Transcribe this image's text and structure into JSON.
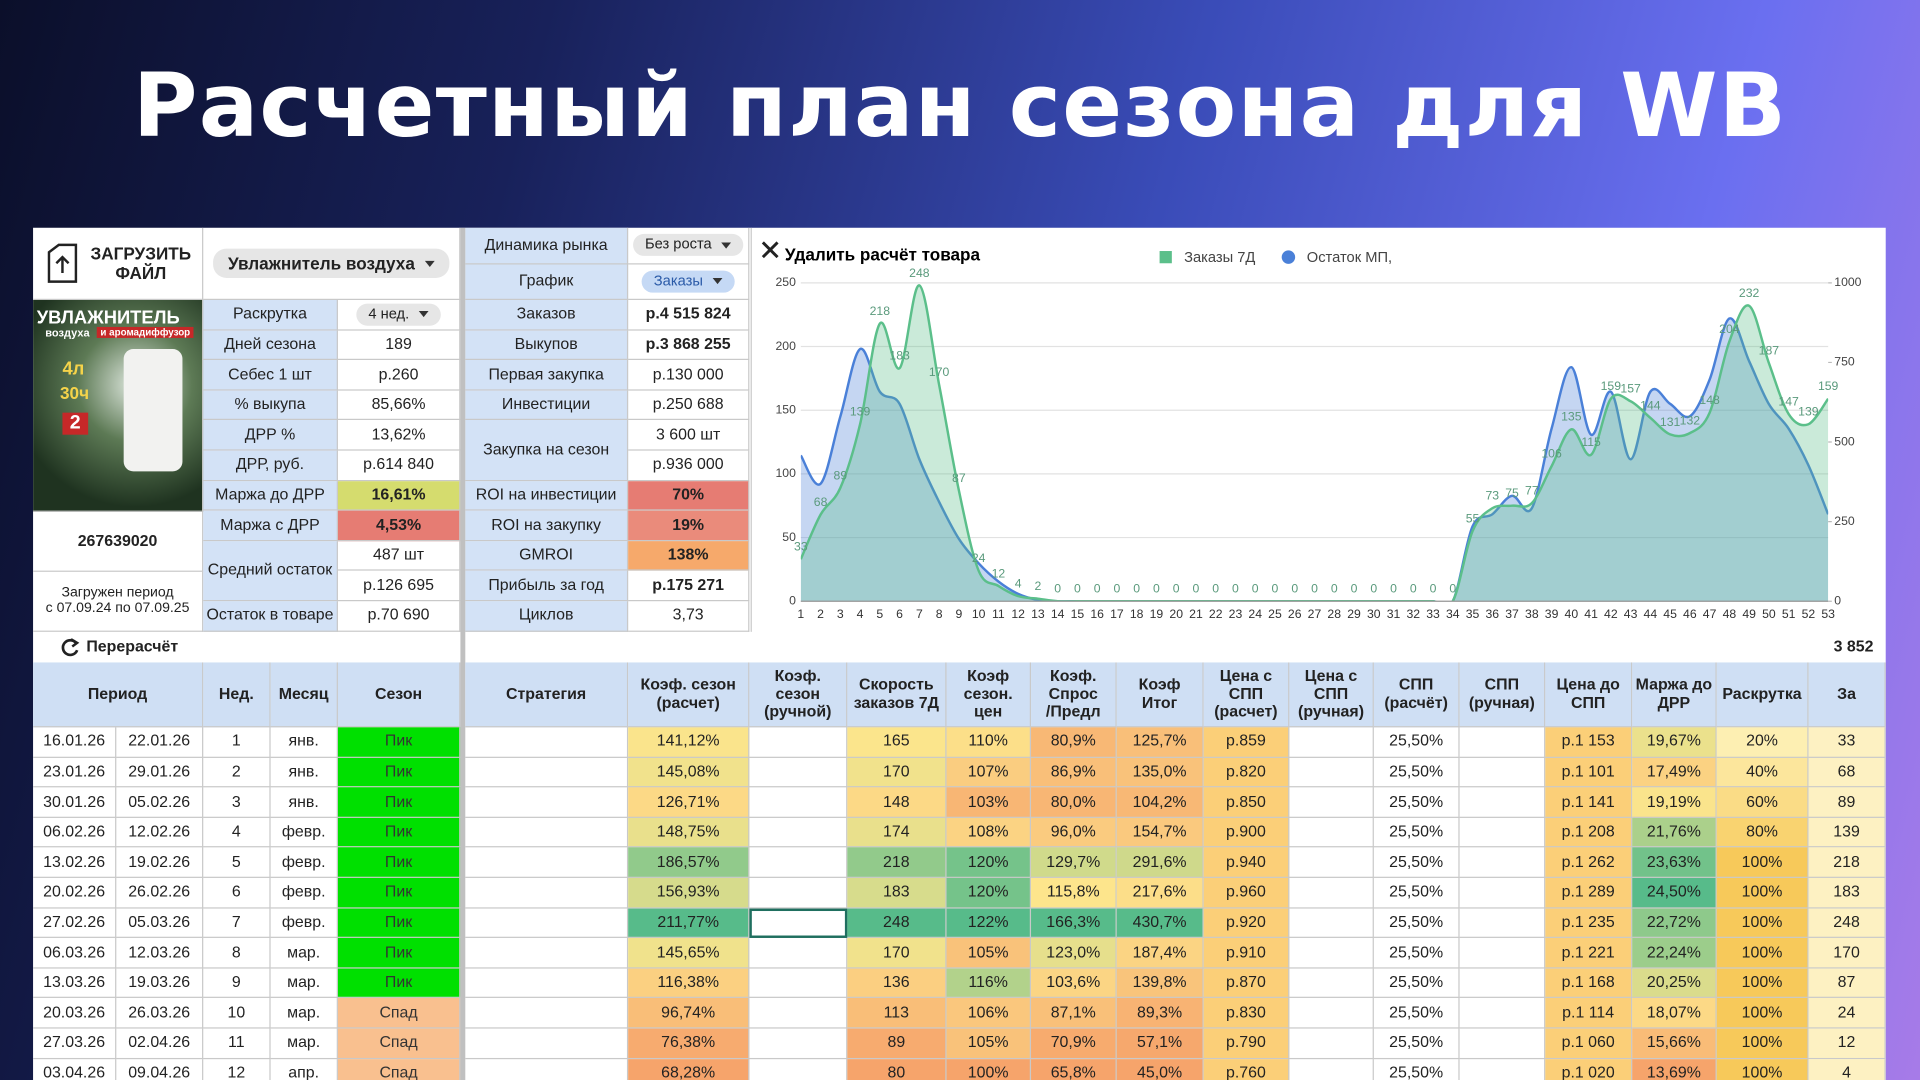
{
  "title": "Расчетный план сезона для WB",
  "upload": "ЗАГРУЗИТЬ\nФАЙЛ",
  "product": {
    "name": "Увлажнитель воздуха",
    "image_text": [
      "УВЛАЖНИТЕЛЬ",
      "воздуха",
      "и аромадиффузор",
      "4л",
      "30ч",
      "2"
    ],
    "sku": "267639020",
    "period": "Загружен период\nс 07.09.24  по 07.09.25"
  },
  "market": [
    {
      "label": "Динамика рынка",
      "value": "Без роста"
    },
    {
      "label": "График",
      "value": "Заказы"
    }
  ],
  "params_left": [
    {
      "label": "Раскрутка",
      "values": [
        "4 нед."
      ],
      "dropdown": true
    },
    {
      "label": "Дней сезона",
      "values": [
        "189"
      ]
    },
    {
      "label": "Себес 1 шт",
      "values": [
        "р.260"
      ]
    },
    {
      "label": "% выкупа",
      "values": [
        "85,66%"
      ]
    },
    {
      "label": "ДРР %",
      "values": [
        "13,62%"
      ]
    },
    {
      "label": "ДРР, руб.",
      "values": [
        "р.614 840"
      ]
    },
    {
      "label": "Маржа до ДРР",
      "values": [
        "16,61%"
      ],
      "color": "#d5dc6e",
      "bold": true
    },
    {
      "label": "Маржа с ДРР",
      "values": [
        "4,53%"
      ],
      "color": "#e67c73",
      "bold": true
    },
    {
      "label": "Средний остаток",
      "values": [
        "487 шт",
        "р.126 695"
      ]
    },
    {
      "label": "Остаток в товаре",
      "values": [
        "р.70 690"
      ]
    }
  ],
  "params_right": [
    {
      "label": "Заказов",
      "values": [
        "р.4 515 824"
      ],
      "bold": true
    },
    {
      "label": "Выкупов",
      "values": [
        "р.3 868 255"
      ],
      "bold": true
    },
    {
      "label": "Первая закупка",
      "values": [
        "р.130 000"
      ]
    },
    {
      "label": "Инвестиции",
      "values": [
        "р.250 688"
      ]
    },
    {
      "label": "Закупка на сезон",
      "values": [
        "3 600 шт",
        "р.936 000"
      ]
    },
    {
      "label": "ROI на инвестиции",
      "values": [
        "70%"
      ],
      "color": "#e67c73",
      "bold": true
    },
    {
      "label": "ROI на закупку",
      "values": [
        "19%"
      ],
      "color": "#ea8b7b",
      "bold": true
    },
    {
      "label": "GMROI",
      "values": [
        "138%"
      ],
      "color": "#f6a96b",
      "bold": true
    },
    {
      "label": "Прибыль за год",
      "values": [
        "р.175 271"
      ],
      "bold": true
    },
    {
      "label": "Циклов",
      "values": [
        "3,73"
      ]
    }
  ],
  "recalc": "Перерасчёт",
  "recalc_total": "3 852",
  "table": {
    "header": [
      "Период",
      "Нед.",
      "Месяц",
      "Сезон",
      "Стратегия",
      "Коэф. сезон\n(расчет)",
      "Коэф.\nсезон\n(ручной)",
      "Скорость\nзаказов 7Д",
      "Коэф\nсезон.\nцен",
      "Коэф.\nСпрос\n/Предл",
      "Коэф\nИтог",
      "Цена с\nСПП\n(расчет)",
      "Цена с\nСПП\n(ручная)",
      "СПП\n(расчёт)",
      "СПП\n(ручная)",
      "Цена до\nСПП",
      "Маржа до\nДРР",
      "Раскрутка",
      "За"
    ],
    "rows": [
      [
        "16.01.26",
        "22.01.26",
        "1",
        "янв.",
        "Пик",
        null,
        "141,12%",
        null,
        "165",
        "110%",
        "80,9%",
        "125,7%",
        "р.859",
        null,
        "25,50%",
        null,
        "р.1 153",
        "19,67%",
        "20%",
        "33"
      ],
      [
        "23.01.26",
        "29.01.26",
        "2",
        "янв.",
        "Пик",
        null,
        "145,08%",
        null,
        "170",
        "107%",
        "86,9%",
        "135,0%",
        "р.820",
        null,
        "25,50%",
        null,
        "р.1 101",
        "17,49%",
        "40%",
        "68"
      ],
      [
        "30.01.26",
        "05.02.26",
        "3",
        "янв.",
        "Пик",
        null,
        "126,71%",
        null,
        "148",
        "103%",
        "80,0%",
        "104,2%",
        "р.850",
        null,
        "25,50%",
        null,
        "р.1 141",
        "19,19%",
        "60%",
        "89"
      ],
      [
        "06.02.26",
        "12.02.26",
        "4",
        "февр.",
        "Пик",
        null,
        "148,75%",
        null,
        "174",
        "108%",
        "96,0%",
        "154,7%",
        "р.900",
        null,
        "25,50%",
        null,
        "р.1 208",
        "21,76%",
        "80%",
        "139"
      ],
      [
        "13.02.26",
        "19.02.26",
        "5",
        "февр.",
        "Пик",
        null,
        "186,57%",
        null,
        "218",
        "120%",
        "129,7%",
        "291,6%",
        "р.940",
        null,
        "25,50%",
        null,
        "р.1 262",
        "23,63%",
        "100%",
        "218"
      ],
      [
        "20.02.26",
        "26.02.26",
        "6",
        "февр.",
        "Пик",
        null,
        "156,93%",
        null,
        "183",
        "120%",
        "115,8%",
        "217,6%",
        "р.960",
        null,
        "25,50%",
        null,
        "р.1 289",
        "24,50%",
        "100%",
        "183"
      ],
      [
        "27.02.26",
        "05.03.26",
        "7",
        "февр.",
        "Пик",
        null,
        "211,77%",
        null,
        "248",
        "122%",
        "166,3%",
        "430,7%",
        "р.920",
        null,
        "25,50%",
        null,
        "р.1 235",
        "22,72%",
        "100%",
        "248"
      ],
      [
        "06.03.26",
        "12.03.26",
        "8",
        "мар.",
        "Пик",
        null,
        "145,65%",
        null,
        "170",
        "105%",
        "123,0%",
        "187,4%",
        "р.910",
        null,
        "25,50%",
        null,
        "р.1 221",
        "22,24%",
        "100%",
        "170"
      ],
      [
        "13.03.26",
        "19.03.26",
        "9",
        "мар.",
        "Пик",
        null,
        "116,38%",
        null,
        "136",
        "116%",
        "103,6%",
        "139,8%",
        "р.870",
        null,
        "25,50%",
        null,
        "р.1 168",
        "20,25%",
        "100%",
        "87"
      ],
      [
        "20.03.26",
        "26.03.26",
        "10",
        "мар.",
        "Спад",
        null,
        "96,74%",
        null,
        "113",
        "106%",
        "87,1%",
        "89,3%",
        "р.830",
        null,
        "25,50%",
        null,
        "р.1 114",
        "18,07%",
        "100%",
        "24"
      ],
      [
        "27.03.26",
        "02.04.26",
        "11",
        "мар.",
        "Спад",
        null,
        "76,38%",
        null,
        "89",
        "105%",
        "70,9%",
        "57,1%",
        "р.790",
        null,
        "25,50%",
        null,
        "р.1 060",
        "15,66%",
        "100%",
        "12"
      ],
      [
        "03.04.26",
        "09.04.26",
        "12",
        "апр.",
        "Спад",
        null,
        "68,28%",
        null,
        "80",
        "100%",
        "65,8%",
        "45,0%",
        "р.760",
        null,
        "25,50%",
        null,
        "р.1 020",
        "13,69%",
        "100%",
        "4"
      ]
    ]
  },
  "chart_data": {
    "type": "line",
    "button": "Удалить расчёт товара",
    "x": [
      1,
      2,
      3,
      4,
      5,
      6,
      7,
      8,
      9,
      10,
      11,
      12,
      13,
      14,
      15,
      16,
      17,
      18,
      19,
      20,
      21,
      22,
      23,
      24,
      25,
      26,
      27,
      28,
      29,
      30,
      31,
      32,
      33,
      34,
      35,
      36,
      37,
      38,
      39,
      40,
      41,
      42,
      43,
      44,
      45,
      46,
      47,
      48,
      49,
      50,
      51,
      52,
      53
    ],
    "xlim": [
      1,
      53
    ],
    "ylim": [
      0,
      250
    ],
    "yticks": [
      0,
      50,
      100,
      150,
      200,
      250
    ],
    "y2lim": [
      0,
      1000
    ],
    "y2ticks": [
      0,
      250,
      500,
      750,
      1000
    ],
    "grid": true,
    "legend": "top",
    "series": [
      {
        "name": "Заказы 7Д",
        "color": "#5bbf8a",
        "data_labels": true,
        "values": [
          33,
          68,
          89,
          139,
          218,
          183,
          248,
          170,
          87,
          24,
          12,
          4,
          2,
          0,
          0,
          0,
          0,
          0,
          0,
          0,
          0,
          0,
          0,
          0,
          0,
          0,
          0,
          0,
          0,
          0,
          0,
          0,
          0,
          0,
          55,
          73,
          75,
          77,
          106,
          135,
          115,
          159,
          157,
          144,
          131,
          132,
          148,
          204,
          232,
          187,
          147,
          139,
          159
        ]
      },
      {
        "name": "Остаток МП,",
        "color": "#4a80d8",
        "axis": "y2",
        "values": [
          458,
          369,
          580,
          792,
          658,
          620,
          446,
          312,
          196,
          119,
          62,
          23,
          4,
          0,
          0,
          0,
          0,
          0,
          0,
          0,
          0,
          0,
          0,
          0,
          0,
          0,
          0,
          0,
          0,
          0,
          0,
          0,
          0,
          0,
          235,
          273,
          331,
          292,
          542,
          735,
          523,
          658,
          446,
          658,
          620,
          581,
          696,
          888,
          754,
          619,
          542,
          427,
          273
        ]
      }
    ]
  }
}
